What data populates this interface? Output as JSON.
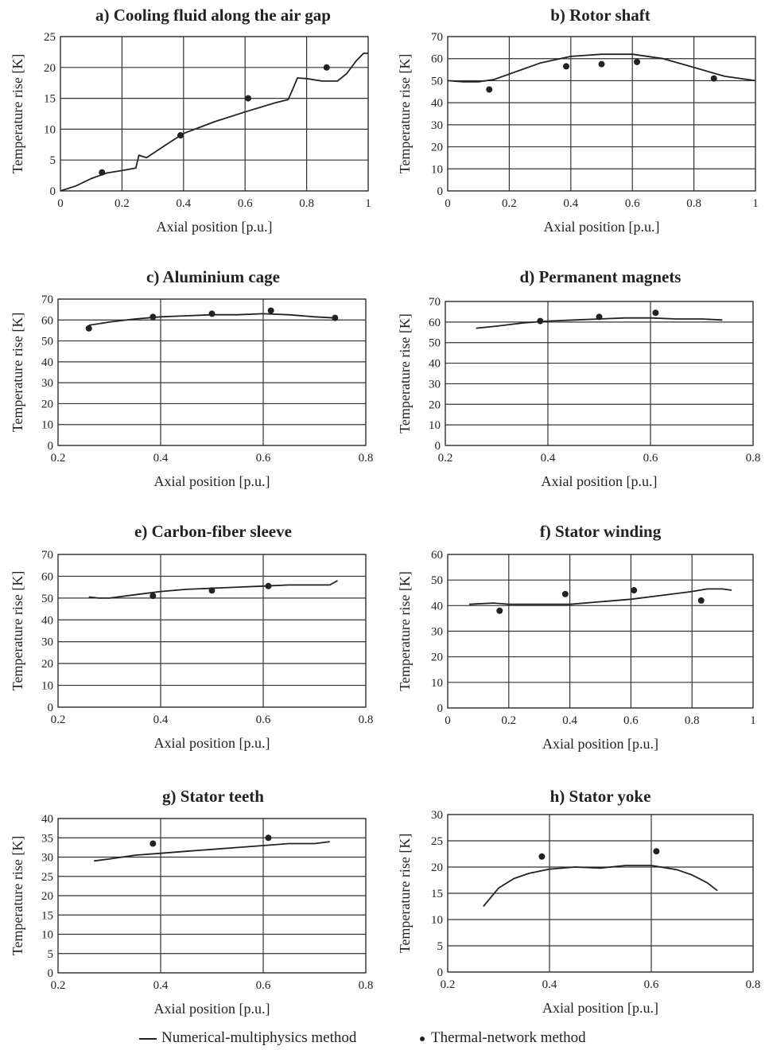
{
  "legend": {
    "line_label": "Numerical-multiphysics method",
    "dot_label": "Thermal-network method"
  },
  "chart_data": [
    {
      "type": "line",
      "title": "a) Cooling fluid along the air gap",
      "xlabel": "Axial position [p.u.]",
      "ylabel": "Temperature rise [K]",
      "xlim": [
        0,
        1
      ],
      "ylim": [
        0,
        25
      ],
      "xticks": [
        "0",
        "0.2",
        "0.4",
        "0.6",
        "0.8",
        "1"
      ],
      "yticks": [
        "0",
        "5",
        "10",
        "15",
        "20",
        "25"
      ],
      "grid": true,
      "series": [
        {
          "x": [
            0,
            0.05,
            0.1,
            0.15,
            0.2,
            0.245,
            0.255,
            0.265,
            0.28,
            0.35,
            0.4,
            0.5,
            0.6,
            0.7,
            0.74,
            0.755,
            0.77,
            0.8,
            0.85,
            0.9,
            0.93,
            0.96,
            0.985,
            1.0
          ],
          "y": [
            0,
            0.8,
            2.0,
            2.9,
            3.3,
            3.7,
            5.8,
            5.6,
            5.4,
            7.7,
            9.3,
            11.2,
            12.8,
            14.3,
            14.8,
            16.5,
            18.3,
            18.2,
            17.8,
            17.8,
            19.0,
            21.0,
            22.3,
            22.3
          ]
        },
        {
          "x": [
            0.135,
            0.39,
            0.61,
            0.865
          ],
          "y": [
            3.0,
            9.0,
            15.0,
            20.0
          ]
        }
      ]
    },
    {
      "type": "line",
      "title": "b) Rotor shaft",
      "xlabel": "Axial position [p.u.]",
      "ylabel": "Temperature rise [K]",
      "xlim": [
        0,
        1
      ],
      "ylim": [
        0,
        70
      ],
      "xticks": [
        "0",
        "0.2",
        "0.4",
        "0.6",
        "0.8",
        "1"
      ],
      "yticks": [
        "0",
        "10",
        "20",
        "30",
        "40",
        "50",
        "60",
        "70"
      ],
      "grid": true,
      "series": [
        {
          "x": [
            0,
            0.05,
            0.1,
            0.15,
            0.2,
            0.3,
            0.4,
            0.5,
            0.6,
            0.7,
            0.8,
            0.9,
            1.0
          ],
          "y": [
            50,
            49.5,
            49.5,
            50.5,
            53,
            58,
            61,
            62,
            62,
            60,
            56,
            52,
            50
          ]
        },
        {
          "x": [
            0.135,
            0.385,
            0.5,
            0.615,
            0.865
          ],
          "y": [
            46,
            56.5,
            57.5,
            58.5,
            51
          ]
        }
      ]
    },
    {
      "type": "line",
      "title": "c) Aluminium cage",
      "xlabel": "Axial position [p.u.]",
      "ylabel": "Temperature rise [K]",
      "xlim": [
        0.2,
        0.8
      ],
      "ylim": [
        0,
        70
      ],
      "xticks": [
        "0.2",
        "0.4",
        "0.6",
        "0.8"
      ],
      "yticks": [
        "0",
        "10",
        "20",
        "30",
        "40",
        "50",
        "60",
        "70"
      ],
      "grid": true,
      "series": [
        {
          "x": [
            0.26,
            0.3,
            0.35,
            0.4,
            0.45,
            0.5,
            0.55,
            0.6,
            0.65,
            0.7,
            0.74
          ],
          "y": [
            57.5,
            59,
            60.5,
            61.5,
            62,
            62.5,
            62.5,
            63,
            62.5,
            61.5,
            61
          ]
        },
        {
          "x": [
            0.26,
            0.385,
            0.5,
            0.615,
            0.74
          ],
          "y": [
            56,
            61.5,
            63,
            64.5,
            61
          ]
        }
      ]
    },
    {
      "type": "line",
      "title": "d) Permanent magnets",
      "xlabel": "Axial position [p.u.]",
      "ylabel": "Temperature rise [K]",
      "xlim": [
        0.2,
        0.8
      ],
      "ylim": [
        0,
        70
      ],
      "xticks": [
        "0.2",
        "0.4",
        "0.6",
        "0.8"
      ],
      "yticks": [
        "0",
        "10",
        "20",
        "30",
        "40",
        "50",
        "60",
        "70"
      ],
      "grid": true,
      "series": [
        {
          "x": [
            0.26,
            0.3,
            0.35,
            0.4,
            0.45,
            0.5,
            0.55,
            0.6,
            0.65,
            0.7,
            0.74
          ],
          "y": [
            57,
            58,
            59.5,
            60.5,
            61,
            61.5,
            62,
            62,
            61.5,
            61.5,
            61
          ]
        },
        {
          "x": [
            0.385,
            0.5,
            0.61
          ],
          "y": [
            60.5,
            62.5,
            64.5
          ]
        }
      ]
    },
    {
      "type": "line",
      "title": "e) Carbon-fiber sleeve",
      "xlabel": "Axial position [p.u.]",
      "ylabel": "Temperature rise [K]",
      "xlim": [
        0.2,
        0.8
      ],
      "ylim": [
        0,
        70
      ],
      "xticks": [
        "0.2",
        "0.4",
        "0.6",
        "0.8"
      ],
      "yticks": [
        "0",
        "10",
        "20",
        "30",
        "40",
        "50",
        "60",
        "70"
      ],
      "grid": true,
      "series": [
        {
          "x": [
            0.26,
            0.28,
            0.3,
            0.35,
            0.4,
            0.45,
            0.5,
            0.55,
            0.6,
            0.65,
            0.7,
            0.73,
            0.745
          ],
          "y": [
            50.5,
            50,
            50,
            51.5,
            53,
            54,
            54.5,
            55,
            55.5,
            56,
            56,
            56,
            58
          ]
        },
        {
          "x": [
            0.385,
            0.5,
            0.61
          ],
          "y": [
            51,
            53.5,
            55.5
          ]
        }
      ]
    },
    {
      "type": "line",
      "title": "f) Stator winding",
      "xlabel": "Axial position [p.u.]",
      "ylabel": "Temperature rise [K]",
      "xlim": [
        0,
        1
      ],
      "ylim": [
        0,
        60
      ],
      "xticks": [
        "0",
        "0.2",
        "0.4",
        "0.6",
        "0.8",
        "1"
      ],
      "yticks": [
        "0",
        "10",
        "20",
        "30",
        "40",
        "50",
        "60"
      ],
      "grid": true,
      "series": [
        {
          "x": [
            0.07,
            0.15,
            0.2,
            0.3,
            0.4,
            0.5,
            0.6,
            0.7,
            0.8,
            0.85,
            0.9,
            0.93
          ],
          "y": [
            40.5,
            41,
            40.5,
            40.5,
            40.5,
            41.5,
            42.5,
            44,
            45.5,
            46.5,
            46.5,
            46
          ]
        },
        {
          "x": [
            0.17,
            0.385,
            0.61,
            0.83
          ],
          "y": [
            38,
            44.5,
            46,
            42
          ]
        }
      ]
    },
    {
      "type": "line",
      "title": "g) Stator teeth",
      "xlabel": "Axial position [p.u.]",
      "ylabel": "Temperature rise [K]",
      "xlim": [
        0.2,
        0.8
      ],
      "ylim": [
        0,
        40
      ],
      "xticks": [
        "0.2",
        "0.4",
        "0.6",
        "0.8"
      ],
      "yticks": [
        "0",
        "5",
        "10",
        "15",
        "20",
        "25",
        "30",
        "35",
        "40"
      ],
      "grid": true,
      "series": [
        {
          "x": [
            0.27,
            0.3,
            0.35,
            0.4,
            0.45,
            0.5,
            0.55,
            0.6,
            0.65,
            0.7,
            0.73
          ],
          "y": [
            29,
            29.5,
            30.5,
            31,
            31.5,
            32,
            32.5,
            33,
            33.5,
            33.5,
            34
          ]
        },
        {
          "x": [
            0.385,
            0.61
          ],
          "y": [
            33.5,
            35
          ]
        }
      ]
    },
    {
      "type": "line",
      "title": "h) Stator yoke",
      "xlabel": "Axial position [p.u.]",
      "ylabel": "Temperature rise [K]",
      "xlim": [
        0.2,
        0.8
      ],
      "ylim": [
        0,
        30
      ],
      "xticks": [
        "0.2",
        "0.4",
        "0.6",
        "0.8"
      ],
      "yticks": [
        "0",
        "5",
        "10",
        "15",
        "20",
        "25",
        "30"
      ],
      "grid": true,
      "series": [
        {
          "x": [
            0.27,
            0.3,
            0.33,
            0.36,
            0.4,
            0.45,
            0.5,
            0.55,
            0.6,
            0.65,
            0.68,
            0.71,
            0.73
          ],
          "y": [
            12.5,
            16,
            17.8,
            18.8,
            19.6,
            20,
            19.8,
            20.3,
            20.3,
            19.5,
            18.5,
            17,
            15.5
          ]
        },
        {
          "x": [
            0.385,
            0.61
          ],
          "y": [
            22,
            23
          ]
        }
      ]
    }
  ]
}
